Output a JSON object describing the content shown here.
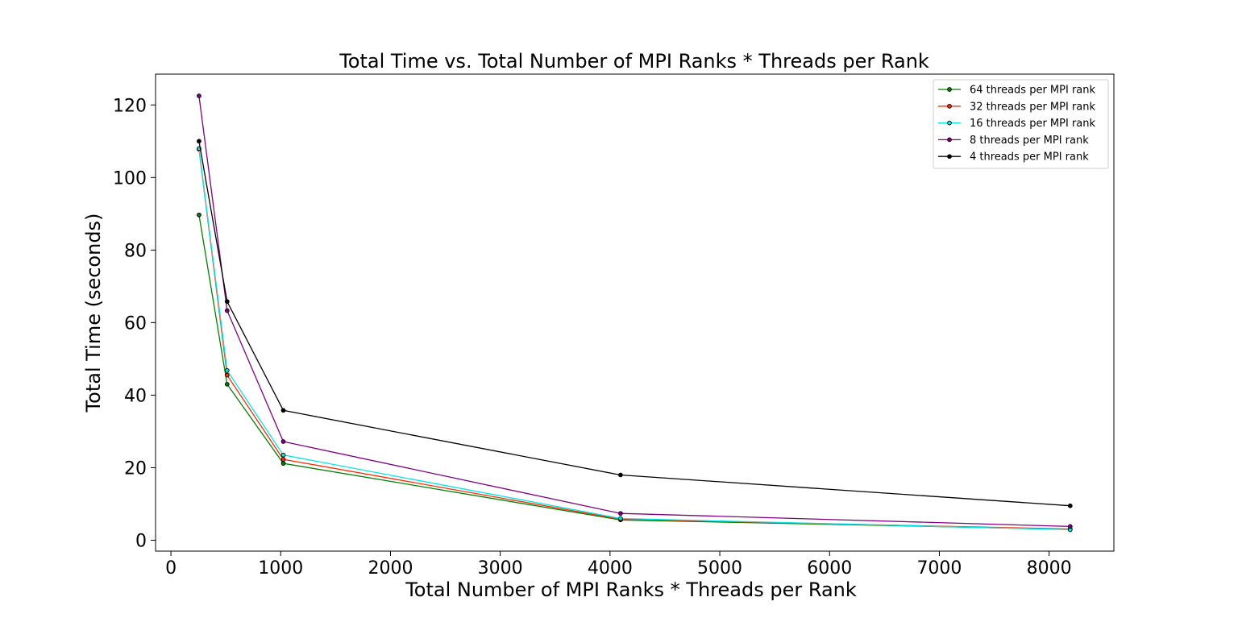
{
  "chart_data": {
    "type": "line",
    "title": "Total Time vs. Total Number of MPI Ranks * Threads per Rank",
    "xlabel": "Total Number of MPI Ranks * Threads per Rank",
    "ylabel": "Total Time (seconds)",
    "xlim": [
      -140,
      8590
    ],
    "ylim": [
      -3,
      128.5
    ],
    "xticks": [
      0,
      1000,
      2000,
      3000,
      4000,
      5000,
      6000,
      7000,
      8000
    ],
    "yticks": [
      0,
      20,
      40,
      60,
      80,
      100,
      120
    ],
    "grid": false,
    "legend_position": "top-right",
    "x": [
      256,
      512,
      1024,
      4096,
      8192
    ],
    "series": [
      {
        "name": "64 threads per MPI rank",
        "color": "#008000",
        "values": [
          89.7,
          43.0,
          21.2,
          5.6,
          3.0
        ]
      },
      {
        "name": "32 threads per MPI rank",
        "color": "#ff2a00",
        "values": [
          107.8,
          45.5,
          22.3,
          5.8,
          3.1
        ]
      },
      {
        "name": "16 threads per MPI rank",
        "color": "#00e5e5",
        "values": [
          108.0,
          46.8,
          23.5,
          6.0,
          2.9
        ]
      },
      {
        "name": "8 threads per MPI rank",
        "color": "#800080",
        "values": [
          122.5,
          63.3,
          27.2,
          7.4,
          3.8
        ]
      },
      {
        "name": "4 threads per MPI rank",
        "color": "#000000",
        "values": [
          110.0,
          65.8,
          35.8,
          18.0,
          9.5
        ]
      }
    ]
  }
}
